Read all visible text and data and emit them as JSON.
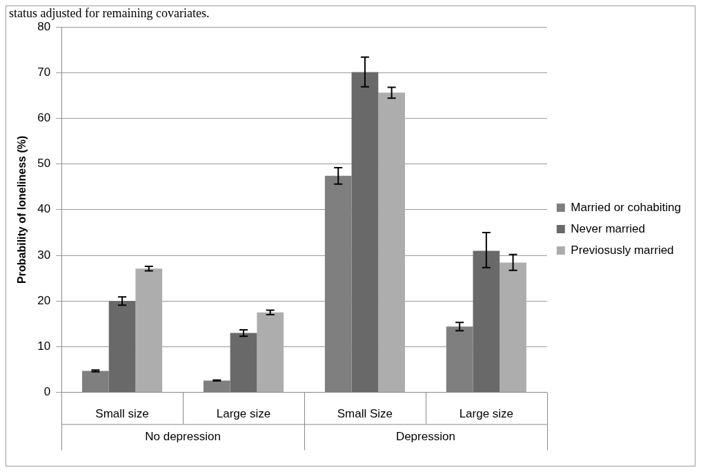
{
  "chart_data": {
    "type": "bar",
    "ylabel": "Probability of loneliness (%)",
    "categories": [
      "Small size",
      "Large size",
      "Small Size",
      "Large size"
    ],
    "series": [
      {
        "name": "Married or cohabiting",
        "color": "#7f7f7f",
        "values": [
          4.7,
          2.6,
          47.4,
          14.4
        ],
        "errors": [
          0.2,
          0.1,
          1.8,
          0.9
        ]
      },
      {
        "name": "Never married",
        "color": "#696969",
        "values": [
          20,
          13,
          70.1,
          31
        ],
        "errors": [
          0.9,
          0.7,
          [
            66.9,
            73.4
          ],
          [
            27.3,
            35
          ]
        ]
      },
      {
        "name": "Previosusly married",
        "color": "#adadad",
        "values": [
          27.1,
          17.5,
          65.6,
          28.4
        ],
        "errors": [
          0.5,
          0.5,
          1.2,
          [
            26.7,
            30.2
          ]
        ]
      }
    ],
    "ylim": [
      0,
      80
    ],
    "yticks": [
      0,
      10,
      20,
      30,
      40,
      50,
      60,
      70,
      80
    ],
    "grid": "y",
    "legend": "right",
    "annotations": [
      "status adjusted for remaining covariates.",
      "No depression",
      "Depression"
    ]
  }
}
